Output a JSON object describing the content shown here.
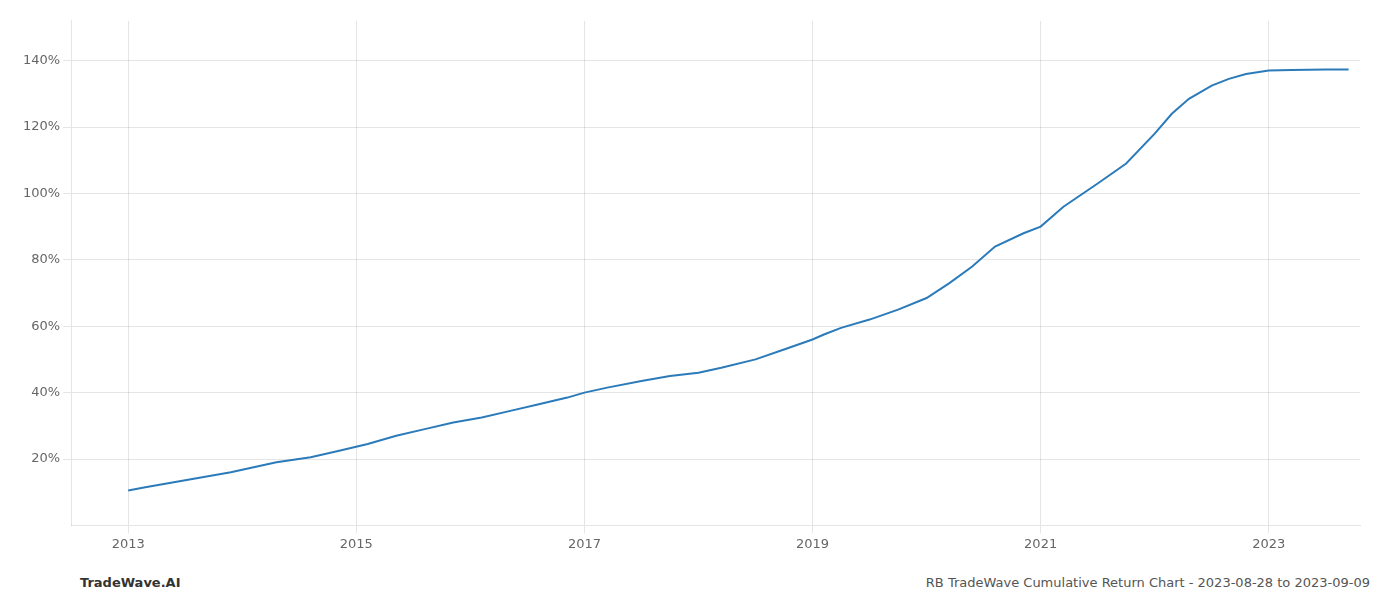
{
  "chart_data": {
    "type": "line",
    "annotations": [
      "TradeWave.AI",
      "RB TradeWave Cumulative Return Chart - 2023-08-28 to 2023-09-09"
    ],
    "color": "#2b7bba",
    "grid": true,
    "xlim": [
      2012.5,
      2023.8
    ],
    "ylim": [
      0,
      152
    ],
    "xticks": [
      2013,
      2015,
      2017,
      2019,
      2021,
      2023
    ],
    "yticks": [
      {
        "value": 20,
        "label": "20%"
      },
      {
        "value": 40,
        "label": "40%"
      },
      {
        "value": 60,
        "label": "60%"
      },
      {
        "value": 80,
        "label": "80%"
      },
      {
        "value": 100,
        "label": "100%"
      },
      {
        "value": 120,
        "label": "120%"
      },
      {
        "value": 140,
        "label": "140%"
      }
    ],
    "x": [
      2013.0,
      2013.15,
      2013.4,
      2013.65,
      2013.9,
      2014.1,
      2014.3,
      2014.6,
      2014.85,
      2015.1,
      2015.35,
      2015.6,
      2015.85,
      2016.1,
      2016.35,
      2016.6,
      2016.85,
      2017.0,
      2017.2,
      2017.5,
      2017.75,
      2018.0,
      2018.2,
      2018.5,
      2018.75,
      2019.0,
      2019.1,
      2019.25,
      2019.5,
      2019.75,
      2020.0,
      2020.2,
      2020.4,
      2020.6,
      2020.85,
      2021.0,
      2021.2,
      2021.5,
      2021.75,
      2022.0,
      2022.15,
      2022.3,
      2022.5,
      2022.65,
      2022.8,
      2023.0,
      2023.2,
      2023.5,
      2023.7
    ],
    "values": [
      10.5,
      11.5,
      13.0,
      14.5,
      16.0,
      17.5,
      19.0,
      20.5,
      22.5,
      24.5,
      27.0,
      29.0,
      31.0,
      32.5,
      34.5,
      36.5,
      38.5,
      40.0,
      41.5,
      43.5,
      45.0,
      46.0,
      47.5,
      50.0,
      53.0,
      56.0,
      57.5,
      59.5,
      62.0,
      65.0,
      68.5,
      73.0,
      78.0,
      84.0,
      88.0,
      90.0,
      96.0,
      103.0,
      109.0,
      118.0,
      124.0,
      128.5,
      132.5,
      134.5,
      136.0,
      137.0,
      137.2,
      137.3,
      137.3
    ]
  }
}
